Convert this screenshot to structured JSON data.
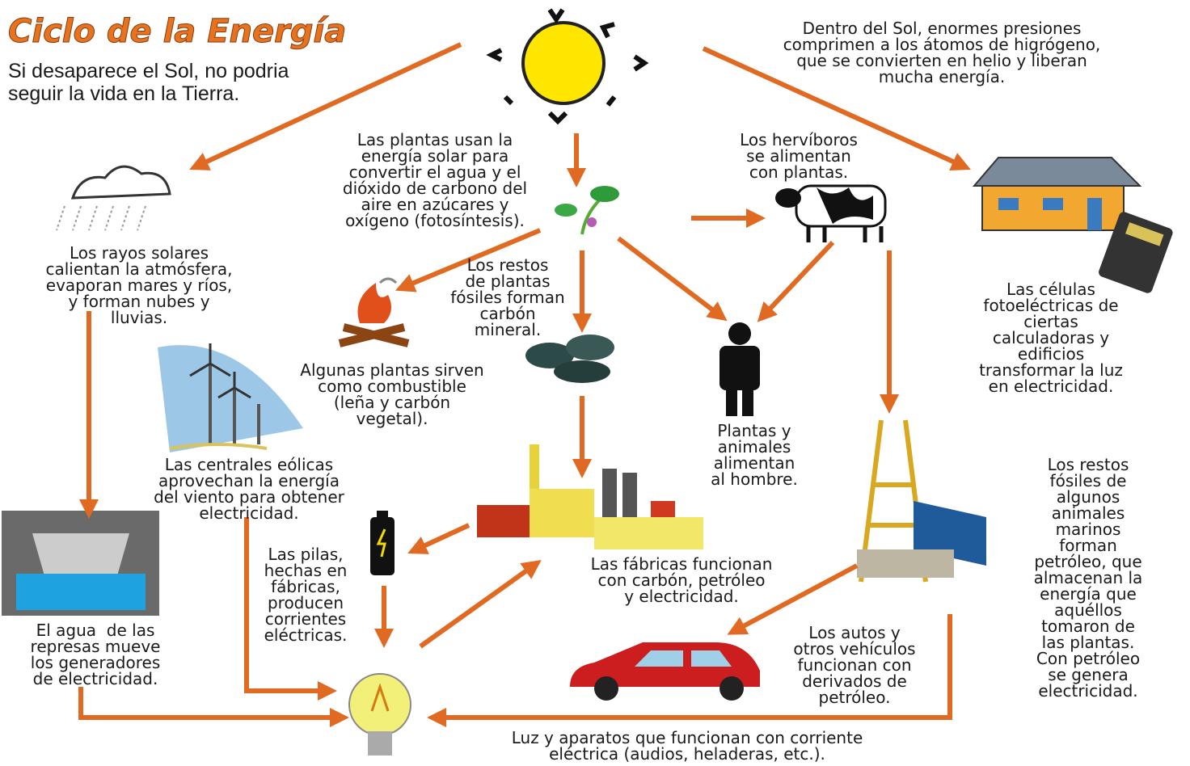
{
  "title": "Ciclo de la Energía",
  "subtitle": {
    "lines": [
      "Si desaparece el Sol, no podria",
      "seguir la vida en la Tierra."
    ]
  },
  "nodes": [
    {
      "lines": [
        "Dentro del Sol, enormes presiones",
        "comprimen a los átomos de higrógeno,",
        "que se convierten en helio y liberan",
        "mucha energía."
      ]
    },
    {
      "lines": [
        "Las plantas usan la",
        "energía solar para",
        "convertir el agua y el",
        "dióxido de carbono del",
        "aire en azúcares y",
        "oxígeno (fotosíntesis)."
      ]
    },
    {
      "lines": [
        "Los hervíboros",
        "se alimentan",
        "con plantas."
      ]
    },
    {
      "lines": [
        "Los rayos solares",
        "calientan la atmósfera,",
        "evaporan mares y ríos,",
        "y forman nubes y",
        "lluvias."
      ]
    },
    {
      "lines": [
        "Los restos",
        "de plantas",
        "fósiles forman",
        "carbón",
        "mineral."
      ]
    },
    {
      "lines": [
        "Algunas plantas sirven",
        "como combustible",
        "(leña y carbón",
        "vegetal)."
      ]
    },
    {
      "lines": [
        "Plantas y",
        "animales",
        "alimentan",
        "al hombre."
      ]
    },
    {
      "lines": [
        "Las células",
        "fotoeléctricas de",
        "ciertas",
        "calculadoras y",
        "edificios",
        "transformar la luz",
        "en electricidad."
      ]
    },
    {
      "lines": [
        "Las centrales eólicas",
        "aprovechan la energía",
        "del viento para obtener",
        "electricidad."
      ]
    },
    {
      "lines": [
        "Las pilas,",
        "hechas en",
        "fábricas,",
        "producen",
        "corrientes",
        "eléctricas."
      ]
    },
    {
      "lines": [
        "Las fábricas funcionan",
        "con carbón, petróleo",
        "y electricidad."
      ]
    },
    {
      "lines": [
        "Los restos",
        "fósiles de",
        "algunos",
        "animales",
        "marinos",
        "forman",
        "petróleo, que",
        "almacenan la",
        "energía que",
        "aquéllos",
        "tomaron de",
        "las plantas.",
        "Con petróleo",
        "se genera",
        "electricidad."
      ]
    },
    {
      "lines": [
        "El agua  de las",
        "represas mueve",
        "los generadores",
        "de electricidad."
      ]
    },
    {
      "lines": [
        "Los autos y",
        "otros vehículos",
        "funcionan con",
        "derivados de",
        "petróleo."
      ]
    },
    {
      "lines": [
        "Luz y aparatos que funcionan con corriente",
        "eléctrica (audios, heladeras, etc.)."
      ]
    }
  ]
}
